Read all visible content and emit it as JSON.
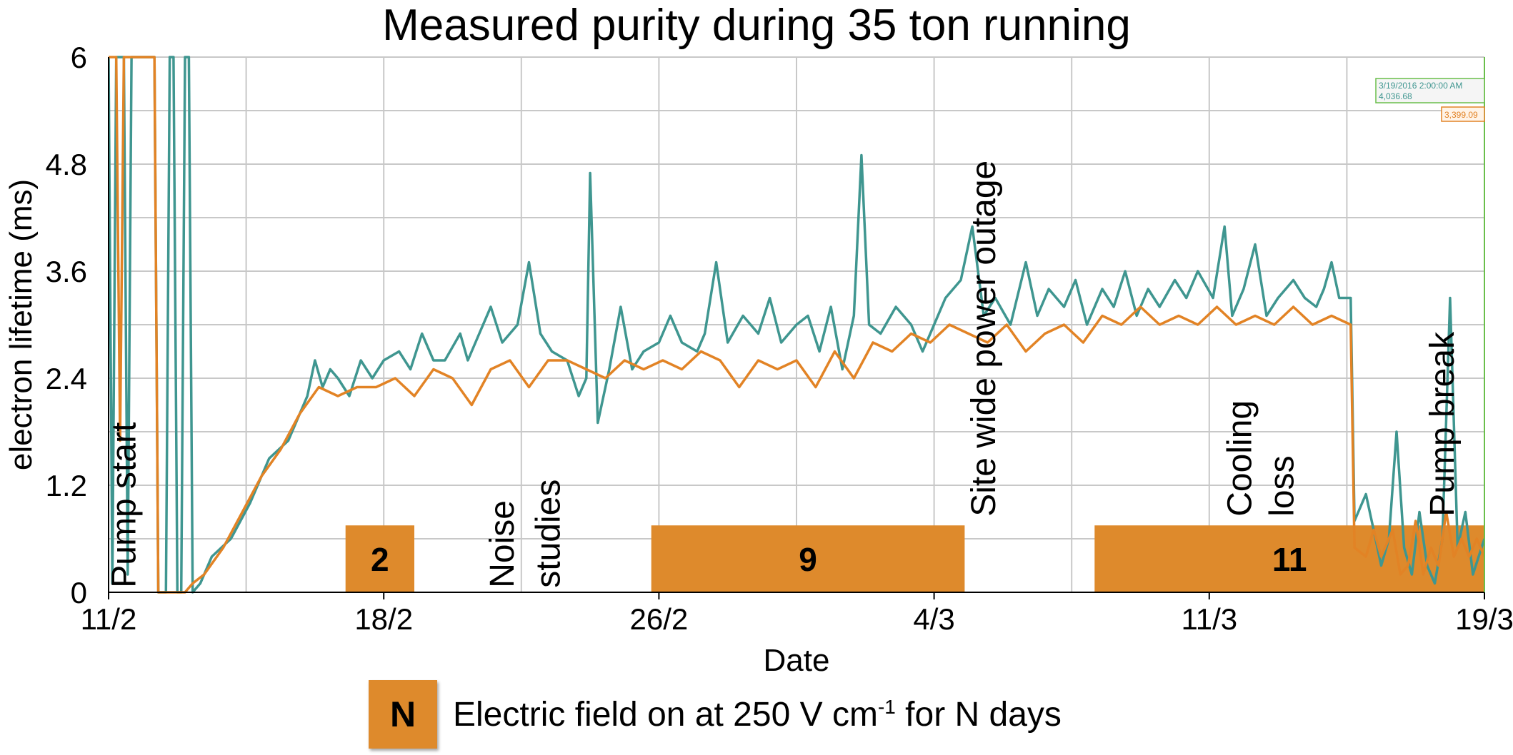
{
  "chart_data": {
    "type": "line",
    "title": "Measured purity during 35 ton running",
    "xlabel": "Date",
    "ylabel": "electron lifetime (ms)",
    "xticks": [
      "11/2",
      "18/2",
      "26/2",
      "4/3",
      "11/3",
      "19/3"
    ],
    "yticks": [
      "0",
      "1.2",
      "2.4",
      "3.6",
      "4.8",
      "6"
    ],
    "xlim": [
      0,
      36
    ],
    "ylim": [
      0,
      6
    ],
    "grid": true,
    "series_colors": [
      "#3f9690",
      "#e28325"
    ],
    "series": [
      {
        "values": [
          [
            0,
            6
          ],
          [
            0.1,
            0.1
          ],
          [
            0.2,
            6
          ],
          [
            0.4,
            6
          ],
          [
            0.5,
            0.2
          ],
          [
            0.6,
            6
          ],
          [
            1.2,
            6
          ],
          [
            1.3,
            0
          ],
          [
            1.5,
            0
          ],
          [
            1.6,
            6
          ],
          [
            1.7,
            6
          ],
          [
            1.8,
            0
          ],
          [
            1.9,
            0
          ],
          [
            2.0,
            6
          ],
          [
            2.1,
            6
          ],
          [
            2.2,
            0
          ],
          [
            2.4,
            0.1
          ],
          [
            2.7,
            0.4
          ],
          [
            3.2,
            0.6
          ],
          [
            3.7,
            1.0
          ],
          [
            4.2,
            1.5
          ],
          [
            4.7,
            1.7
          ],
          [
            5.2,
            2.2
          ],
          [
            5.4,
            2.6
          ],
          [
            5.6,
            2.3
          ],
          [
            5.8,
            2.5
          ],
          [
            6.0,
            2.4
          ],
          [
            6.3,
            2.2
          ],
          [
            6.6,
            2.6
          ],
          [
            6.9,
            2.4
          ],
          [
            7.2,
            2.6
          ],
          [
            7.6,
            2.7
          ],
          [
            7.9,
            2.5
          ],
          [
            8.2,
            2.9
          ],
          [
            8.5,
            2.6
          ],
          [
            8.8,
            2.6
          ],
          [
            9.2,
            2.9
          ],
          [
            9.4,
            2.6
          ],
          [
            9.7,
            2.9
          ],
          [
            10.0,
            3.2
          ],
          [
            10.3,
            2.8
          ],
          [
            10.7,
            3.0
          ],
          [
            11.0,
            3.7
          ],
          [
            11.3,
            2.9
          ],
          [
            11.6,
            2.7
          ],
          [
            12.0,
            2.6
          ],
          [
            12.3,
            2.2
          ],
          [
            12.5,
            2.4
          ],
          [
            12.6,
            4.7
          ],
          [
            12.8,
            1.9
          ],
          [
            13.1,
            2.5
          ],
          [
            13.4,
            3.2
          ],
          [
            13.7,
            2.5
          ],
          [
            14.0,
            2.7
          ],
          [
            14.4,
            2.8
          ],
          [
            14.7,
            3.1
          ],
          [
            15.0,
            2.8
          ],
          [
            15.4,
            2.7
          ],
          [
            15.6,
            2.9
          ],
          [
            15.9,
            3.7
          ],
          [
            16.2,
            2.8
          ],
          [
            16.6,
            3.1
          ],
          [
            17.0,
            2.9
          ],
          [
            17.3,
            3.3
          ],
          [
            17.6,
            2.8
          ],
          [
            18.0,
            3.0
          ],
          [
            18.3,
            3.1
          ],
          [
            18.6,
            2.7
          ],
          [
            18.9,
            3.2
          ],
          [
            19.2,
            2.5
          ],
          [
            19.5,
            3.1
          ],
          [
            19.7,
            4.9
          ],
          [
            19.9,
            3.0
          ],
          [
            20.2,
            2.9
          ],
          [
            20.6,
            3.2
          ],
          [
            21.0,
            3.0
          ],
          [
            21.3,
            2.7
          ],
          [
            21.6,
            3.0
          ],
          [
            21.9,
            3.3
          ],
          [
            22.3,
            3.5
          ],
          [
            22.6,
            4.1
          ],
          [
            22.9,
            3.1
          ],
          [
            23.2,
            3.3
          ],
          [
            23.6,
            3.0
          ],
          [
            24.0,
            3.7
          ],
          [
            24.3,
            3.1
          ],
          [
            24.6,
            3.4
          ],
          [
            25.0,
            3.2
          ],
          [
            25.3,
            3.5
          ],
          [
            25.6,
            3.0
          ],
          [
            26.0,
            3.4
          ],
          [
            26.3,
            3.2
          ],
          [
            26.6,
            3.6
          ],
          [
            26.9,
            3.1
          ],
          [
            27.2,
            3.4
          ],
          [
            27.5,
            3.2
          ],
          [
            27.9,
            3.5
          ],
          [
            28.2,
            3.3
          ],
          [
            28.5,
            3.6
          ],
          [
            28.9,
            3.3
          ],
          [
            29.2,
            4.1
          ],
          [
            29.4,
            3.1
          ],
          [
            29.7,
            3.4
          ],
          [
            30.0,
            3.9
          ],
          [
            30.3,
            3.1
          ],
          [
            30.6,
            3.3
          ],
          [
            31.0,
            3.5
          ],
          [
            31.3,
            3.3
          ],
          [
            31.6,
            3.2
          ],
          [
            31.8,
            3.4
          ],
          [
            32.0,
            3.7
          ],
          [
            32.2,
            3.3
          ],
          [
            32.5,
            3.3
          ],
          [
            32.6,
            0.8
          ],
          [
            32.9,
            1.1
          ],
          [
            33.1,
            0.7
          ],
          [
            33.3,
            0.3
          ],
          [
            33.5,
            0.6
          ],
          [
            33.7,
            1.8
          ],
          [
            33.9,
            0.5
          ],
          [
            34.1,
            0.2
          ],
          [
            34.3,
            0.9
          ],
          [
            34.5,
            0.3
          ],
          [
            34.7,
            0.1
          ],
          [
            34.9,
            0.6
          ],
          [
            35.1,
            3.3
          ],
          [
            35.3,
            0.5
          ],
          [
            35.5,
            0.9
          ],
          [
            35.7,
            0.2
          ],
          [
            36.0,
            0.6
          ],
          [
            36.0,
            0.6
          ]
        ]
      },
      {
        "values": [
          [
            0,
            6
          ],
          [
            0.2,
            6
          ],
          [
            0.3,
            1.7
          ],
          [
            0.4,
            6
          ],
          [
            1.2,
            6
          ],
          [
            1.3,
            0
          ],
          [
            1.6,
            0
          ],
          [
            2.0,
            0
          ],
          [
            2.2,
            0.1
          ],
          [
            2.5,
            0.2
          ],
          [
            3.0,
            0.5
          ],
          [
            3.5,
            0.9
          ],
          [
            4.0,
            1.3
          ],
          [
            4.5,
            1.6
          ],
          [
            5.0,
            2.0
          ],
          [
            5.5,
            2.3
          ],
          [
            6.0,
            2.2
          ],
          [
            6.5,
            2.3
          ],
          [
            7.0,
            2.3
          ],
          [
            7.5,
            2.4
          ],
          [
            8.0,
            2.2
          ],
          [
            8.5,
            2.5
          ],
          [
            9.0,
            2.4
          ],
          [
            9.5,
            2.1
          ],
          [
            10.0,
            2.5
          ],
          [
            10.5,
            2.6
          ],
          [
            11.0,
            2.3
          ],
          [
            11.5,
            2.6
          ],
          [
            12.0,
            2.6
          ],
          [
            12.5,
            2.5
          ],
          [
            13.0,
            2.4
          ],
          [
            13.5,
            2.6
          ],
          [
            14.0,
            2.5
          ],
          [
            14.5,
            2.6
          ],
          [
            15.0,
            2.5
          ],
          [
            15.5,
            2.7
          ],
          [
            16.0,
            2.6
          ],
          [
            16.5,
            2.3
          ],
          [
            17.0,
            2.6
          ],
          [
            17.5,
            2.5
          ],
          [
            18.0,
            2.6
          ],
          [
            18.5,
            2.3
          ],
          [
            19.0,
            2.7
          ],
          [
            19.5,
            2.4
          ],
          [
            20.0,
            2.8
          ],
          [
            20.5,
            2.7
          ],
          [
            21.0,
            2.9
          ],
          [
            21.5,
            2.8
          ],
          [
            22.0,
            3.0
          ],
          [
            22.5,
            2.9
          ],
          [
            23.0,
            2.8
          ],
          [
            23.5,
            3.0
          ],
          [
            24.0,
            2.7
          ],
          [
            24.5,
            2.9
          ],
          [
            25.0,
            3.0
          ],
          [
            25.5,
            2.8
          ],
          [
            26.0,
            3.1
          ],
          [
            26.5,
            3.0
          ],
          [
            27.0,
            3.2
          ],
          [
            27.5,
            3.0
          ],
          [
            28.0,
            3.1
          ],
          [
            28.5,
            3.0
          ],
          [
            29.0,
            3.2
          ],
          [
            29.5,
            3.0
          ],
          [
            30.0,
            3.1
          ],
          [
            30.5,
            3.0
          ],
          [
            31.0,
            3.2
          ],
          [
            31.5,
            3.0
          ],
          [
            32.0,
            3.1
          ],
          [
            32.5,
            3.0
          ],
          [
            32.6,
            0.5
          ],
          [
            32.9,
            0.4
          ],
          [
            33.1,
            0.7
          ],
          [
            33.3,
            0.4
          ],
          [
            33.6,
            0.7
          ],
          [
            33.8,
            0.2
          ],
          [
            34.0,
            0.3
          ],
          [
            34.2,
            0.8
          ],
          [
            34.4,
            0.2
          ],
          [
            34.6,
            0.5
          ],
          [
            34.8,
            0.3
          ],
          [
            35.0,
            0.9
          ],
          [
            35.2,
            0.4
          ],
          [
            35.4,
            0.6
          ],
          [
            35.6,
            0.4
          ],
          [
            35.8,
            0.6
          ],
          [
            36.0,
            0.4
          ]
        ]
      }
    ],
    "field_on_bars": [
      {
        "label": "2",
        "start": 6.2,
        "end": 8.0,
        "height": 0.75
      },
      {
        "label": "9",
        "start": 14.2,
        "end": 22.4,
        "height": 0.75
      },
      {
        "label": "11",
        "start": 25.8,
        "end": 36.0,
        "height": 0.75
      }
    ],
    "annotations": [
      {
        "text": "Pump start",
        "x": 0.7,
        "y": 0.05
      },
      {
        "text": "Noise",
        "x": 10.6,
        "y": 0.05
      },
      {
        "text": "studies",
        "x": 11.8,
        "y": 0.05
      },
      {
        "text": "Site wide power outage",
        "x": 23.2,
        "y": 0.85
      },
      {
        "text": "Cooling",
        "x": 29.9,
        "y": 0.85
      },
      {
        "text": "loss",
        "x": 31.0,
        "y": 0.85
      },
      {
        "text": "Pump break",
        "x": 35.2,
        "y": 0.85
      }
    ],
    "tooltip": {
      "date": "3/19/2016 2:00:00 AM",
      "teal_value": "4,036.68",
      "orange_value": "3,399.09"
    },
    "legend": {
      "swatch_label": "N",
      "text_main": "Electric field on at 250 V cm",
      "text_sup": "-1",
      "text_end": " for N days"
    }
  }
}
